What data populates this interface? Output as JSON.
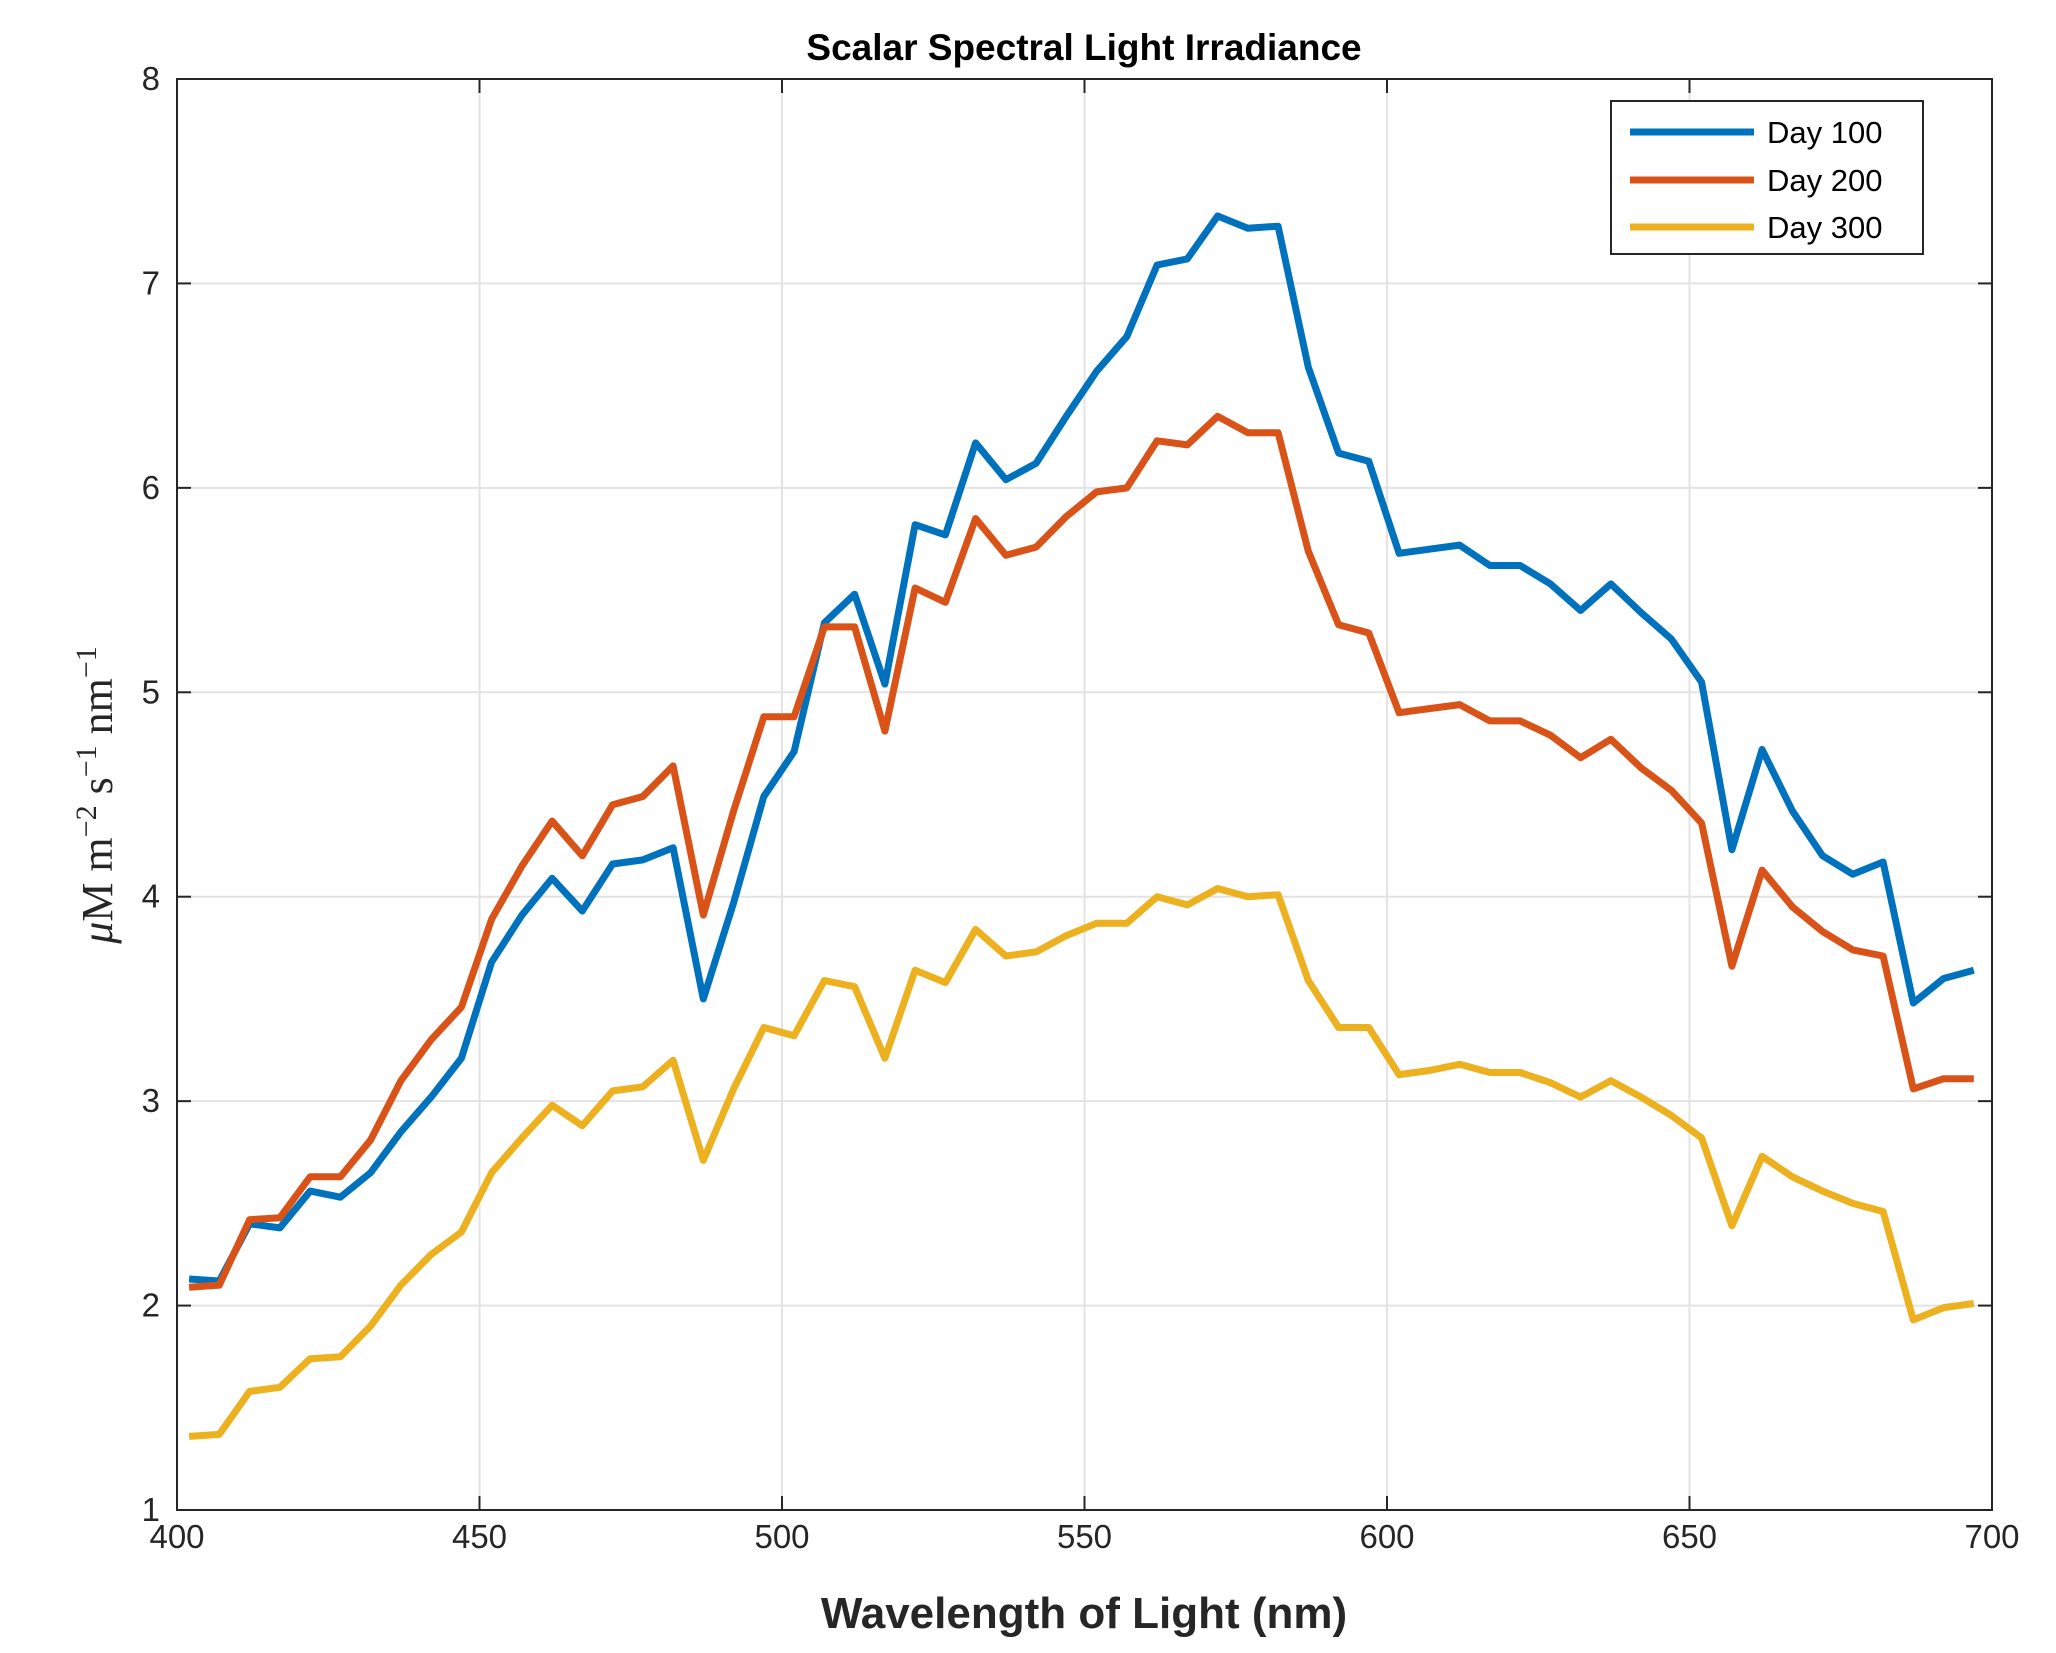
{
  "chart_data": {
    "type": "line",
    "title": "Scalar Spectral Light Irradiance",
    "xlabel": "Wavelength of Light (nm)",
    "ylabel": {
      "mu": "μ",
      "unit1": "M m",
      "exp1": "−2",
      "unit2": " s",
      "exp2": "−1",
      "unit3": " nm",
      "exp3": "−1"
    },
    "xlim": [
      400,
      700
    ],
    "ylim": [
      1,
      8
    ],
    "xticks": [
      "400",
      "450",
      "500",
      "550",
      "600",
      "650",
      "700"
    ],
    "yticks": [
      "1",
      "2",
      "3",
      "4",
      "5",
      "6",
      "7",
      "8"
    ],
    "grid": true,
    "legend_position": "top-right",
    "x": [
      402,
      407,
      412,
      417,
      422,
      427,
      432,
      437,
      442,
      447,
      452,
      457,
      462,
      467,
      472,
      477,
      482,
      487,
      492,
      497,
      502,
      507,
      512,
      517,
      522,
      527,
      532,
      537,
      542,
      547,
      552,
      557,
      562,
      567,
      572,
      577,
      582,
      587,
      592,
      597,
      602,
      607,
      612,
      617,
      622,
      627,
      632,
      637,
      642,
      647,
      652,
      657,
      662,
      667,
      672,
      677,
      682,
      687,
      692,
      697
    ],
    "series": [
      {
        "name": "Day 100",
        "color": "#0072BD",
        "values": [
          2.13,
          2.12,
          2.4,
          2.38,
          2.56,
          2.53,
          2.65,
          2.85,
          3.02,
          3.21,
          3.68,
          3.91,
          4.09,
          3.93,
          4.16,
          4.18,
          4.24,
          3.5,
          3.97,
          4.49,
          4.71,
          5.34,
          5.48,
          5.04,
          5.82,
          5.77,
          6.22,
          6.04,
          6.12,
          6.35,
          6.57,
          6.74,
          7.09,
          7.12,
          7.33,
          7.27,
          7.28,
          6.59,
          6.17,
          6.13,
          5.68,
          5.7,
          5.72,
          5.62,
          5.62,
          5.53,
          5.4,
          5.53,
          5.39,
          5.26,
          5.05,
          4.23,
          4.72,
          4.42,
          4.2,
          4.11,
          4.17,
          3.48,
          3.6,
          3.64
        ]
      },
      {
        "name": "Day 200",
        "color": "#D95319",
        "values": [
          2.09,
          2.1,
          2.42,
          2.43,
          2.63,
          2.63,
          2.81,
          3.1,
          3.3,
          3.46,
          3.89,
          4.15,
          4.37,
          4.2,
          4.45,
          4.49,
          4.64,
          3.91,
          4.42,
          4.88,
          4.88,
          5.32,
          5.32,
          4.81,
          5.51,
          5.44,
          5.85,
          5.67,
          5.71,
          5.86,
          5.98,
          6.0,
          6.23,
          6.21,
          6.35,
          6.27,
          6.27,
          5.69,
          5.33,
          5.29,
          4.9,
          4.92,
          4.94,
          4.86,
          4.86,
          4.79,
          4.68,
          4.77,
          4.63,
          4.52,
          4.36,
          3.66,
          4.13,
          3.95,
          3.83,
          3.74,
          3.71,
          3.06,
          3.11,
          3.11
        ]
      },
      {
        "name": "Day 300",
        "color": "#EDB120",
        "values": [
          1.36,
          1.37,
          1.58,
          1.6,
          1.74,
          1.75,
          1.9,
          2.1,
          2.25,
          2.36,
          2.65,
          2.82,
          2.98,
          2.88,
          3.05,
          3.07,
          3.2,
          2.71,
          3.06,
          3.36,
          3.32,
          3.59,
          3.56,
          3.21,
          3.64,
          3.58,
          3.84,
          3.71,
          3.73,
          3.81,
          3.87,
          3.87,
          4.0,
          3.96,
          4.04,
          4.0,
          4.01,
          3.59,
          3.36,
          3.36,
          3.13,
          3.15,
          3.18,
          3.14,
          3.14,
          3.09,
          3.02,
          3.1,
          3.02,
          2.93,
          2.82,
          2.39,
          2.73,
          2.63,
          2.56,
          2.5,
          2.46,
          1.93,
          1.99,
          2.01
        ]
      }
    ]
  }
}
